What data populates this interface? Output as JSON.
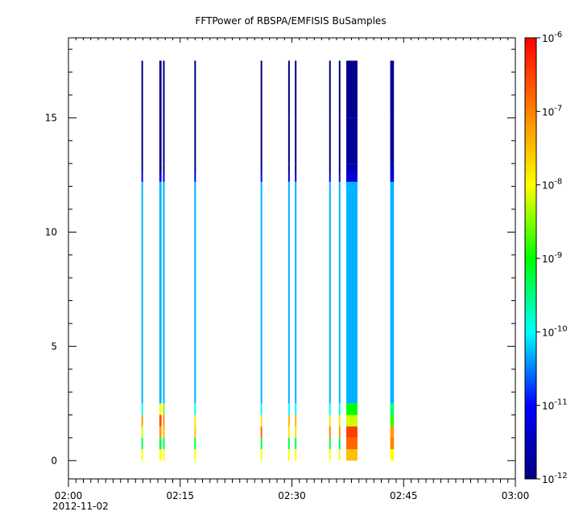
{
  "chart_data": {
    "type": "heatmap",
    "title": "FFTPower of RBSPA/EMFISIS  BuSamples",
    "xlabel": "",
    "ylabel": "",
    "x_unit": "time (HH:MM)",
    "xlim": [
      "02:00",
      "03:00"
    ],
    "ylim": [
      -0.8,
      18.5
    ],
    "x_ticks": [
      "02:00",
      "02:15",
      "02:30",
      "02:45",
      "03:00"
    ],
    "x_date_label": "2012-11-02",
    "y_ticks": [
      0,
      5,
      10,
      15
    ],
    "colorbar": {
      "scale": "log",
      "range": [
        1e-12,
        1e-06
      ],
      "ticks": [
        {
          "base": "10",
          "exp": "-12"
        },
        {
          "base": "10",
          "exp": "-11"
        },
        {
          "base": "10",
          "exp": "-10"
        },
        {
          "base": "10",
          "exp": "-9"
        },
        {
          "base": "10",
          "exp": "-8"
        },
        {
          "base": "10",
          "exp": "-7"
        },
        {
          "base": "10",
          "exp": "-6"
        }
      ],
      "colors": [
        "#000080",
        "#0000ff",
        "#00ffff",
        "#00ff00",
        "#ffff00",
        "#ff8000",
        "#ff0000"
      ]
    },
    "y_bins_upper_edges": [
      0.5,
      1.0,
      1.5,
      2.0,
      2.5,
      12.2,
      12.6,
      13.0,
      15.0,
      17.5
    ],
    "bursts": [
      {
        "start": "02:09.8",
        "end": "02:10.0",
        "values_log": [
          -8,
          -9.3,
          -8.2,
          -7.2,
          -10,
          -10.3,
          -11.2,
          -12,
          -12,
          -12
        ]
      },
      {
        "start": "02:12.2",
        "end": "02:12.5",
        "values_log": [
          -8,
          -9.3,
          -7.2,
          -6.6,
          -8,
          -10.3,
          -11.2,
          -12,
          -12,
          -12
        ]
      },
      {
        "start": "02:12.7",
        "end": "02:12.9",
        "values_log": [
          -8,
          -9.3,
          -7.4,
          -7.2,
          -8.5,
          -10.3,
          -11.2,
          -12,
          -12,
          -12
        ]
      },
      {
        "start": "02:16.9",
        "end": "02:17.1",
        "values_log": [
          -8,
          -9.3,
          -7.6,
          -7.8,
          -10,
          -10.3,
          -11.2,
          -12,
          -12,
          -12
        ]
      },
      {
        "start": "02:25.8",
        "end": "02:26.0",
        "values_log": [
          -8,
          -9.3,
          -6.8,
          -7.8,
          -10,
          -10.3,
          -11.2,
          -12,
          -12,
          -12
        ]
      },
      {
        "start": "02:29.5",
        "end": "02:29.7",
        "values_log": [
          -8,
          -9.3,
          -7.8,
          -7.4,
          -10,
          -10.3,
          -11.2,
          -12,
          -12,
          -12
        ]
      },
      {
        "start": "02:30.4",
        "end": "02:30.6",
        "values_log": [
          -8,
          -9.3,
          -7.8,
          -7.4,
          -10,
          -10.3,
          -11.2,
          -12,
          -12,
          -12
        ]
      },
      {
        "start": "02:35.0",
        "end": "02:35.2",
        "values_log": [
          -8,
          -9.3,
          -7.0,
          -7.8,
          -10,
          -10.3,
          -11.2,
          -12,
          -12,
          -12
        ]
      },
      {
        "start": "02:36.3",
        "end": "02:36.5",
        "values_log": [
          -8,
          -9.3,
          -7.2,
          -7.8,
          -10,
          -10.3,
          -11.2,
          -12,
          -12,
          -12
        ]
      },
      {
        "start": "02:37.3",
        "end": "02:38.8",
        "values_log": [
          -7.5,
          -6.8,
          -6.5,
          -8.2,
          -9.0,
          -10.3,
          -11.3,
          -11.6,
          -11.8,
          -11.9
        ]
      },
      {
        "start": "02:43.2",
        "end": "02:43.7",
        "values_log": [
          -8,
          -7.0,
          -7.2,
          -8.8,
          -9.5,
          -10.3,
          -11.2,
          -11.5,
          -11.8,
          -11.9
        ]
      }
    ]
  }
}
